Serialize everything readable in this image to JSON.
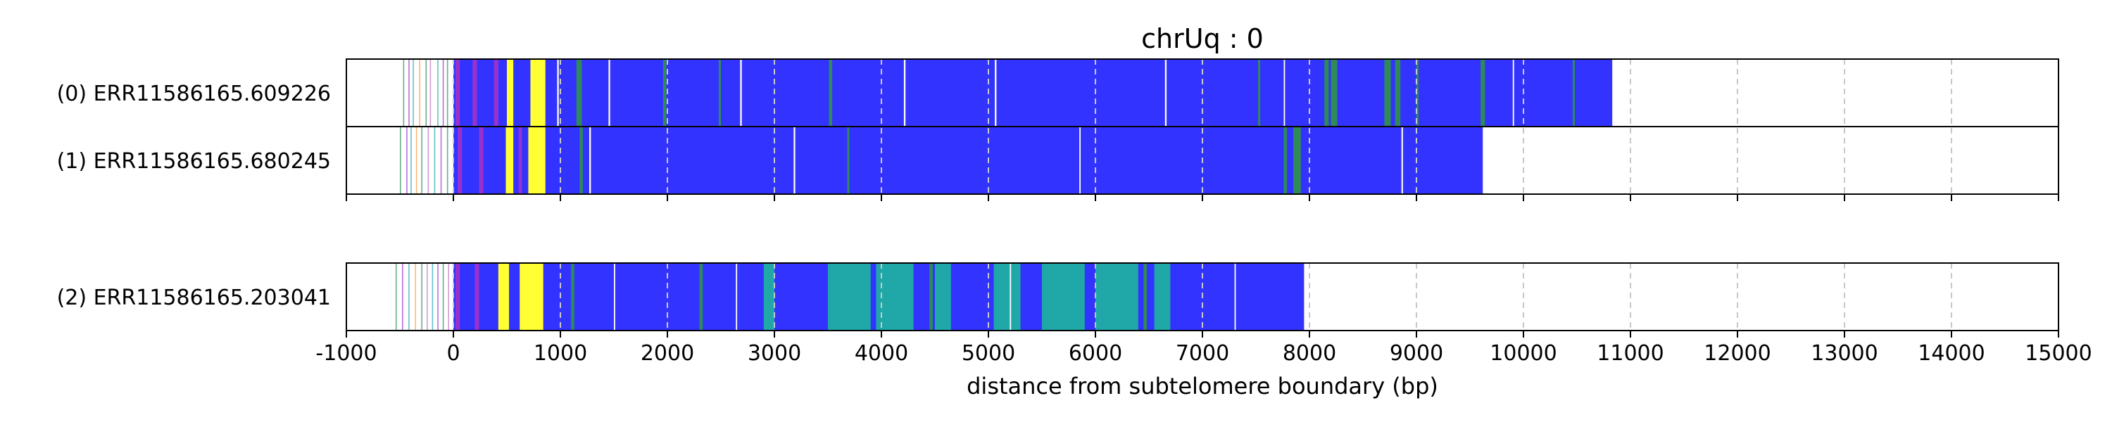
{
  "chart_data": {
    "type": "bar",
    "title": "chrUq : 0",
    "xlabel": "distance from subtelomere boundary (bp)",
    "xlim": [
      -1000,
      15000
    ],
    "xticks": [
      -1000,
      0,
      1000,
      2000,
      3000,
      4000,
      5000,
      6000,
      7000,
      8000,
      9000,
      10000,
      11000,
      12000,
      13000,
      14000,
      15000
    ],
    "grid": "vertical dashed at each x tick",
    "colors": {
      "main": "#3333ff",
      "yellow": "#ffff33",
      "green": "#2e8b57",
      "teal": "#20a8a8",
      "purple": "#9932cc",
      "white": "#ffffff",
      "grid": "#c8c8c8"
    },
    "reads": [
      {
        "label": "(0) ERR11586165.609226",
        "panel": 1,
        "start": -500,
        "solid_start": 0,
        "end": 10830,
        "yellow": [
          [
            500,
            560
          ],
          [
            720,
            860
          ]
        ],
        "purple": [
          [
            20,
            60
          ],
          [
            180,
            220
          ],
          [
            380,
            420
          ]
        ],
        "green": [
          [
            1150,
            1200
          ],
          [
            1960,
            1990
          ],
          [
            2480,
            2500
          ],
          [
            3510,
            3540
          ],
          [
            7520,
            7540
          ],
          [
            8140,
            8180
          ],
          [
            8200,
            8260
          ],
          [
            8700,
            8760
          ],
          [
            8800,
            8850
          ],
          [
            9000,
            9020
          ],
          [
            9600,
            9640
          ],
          [
            10460,
            10480
          ]
        ],
        "white": [
          [
            970,
            985
          ],
          [
            1450,
            1465
          ],
          [
            2680,
            2695
          ],
          [
            4210,
            4225
          ],
          [
            5060,
            5075
          ],
          [
            6650,
            6665
          ],
          [
            7760,
            7772
          ],
          [
            9900,
            9912
          ]
        ],
        "thin": [
          -470,
          -420,
          -380,
          -320,
          -260,
          -220,
          -150,
          -100,
          -60
        ]
      },
      {
        "label": "(1) ERR11586165.680245",
        "panel": 1,
        "start": -520,
        "solid_start": 0,
        "end": 9620,
        "yellow": [
          [
            490,
            560
          ],
          [
            700,
            860
          ]
        ],
        "purple": [
          [
            40,
            80
          ],
          [
            240,
            280
          ],
          [
            610,
            640
          ]
        ],
        "green": [
          [
            1180,
            1210
          ],
          [
            3680,
            3700
          ],
          [
            7760,
            7790
          ],
          [
            7850,
            7920
          ]
        ],
        "white": [
          [
            1270,
            1285
          ],
          [
            3180,
            3195
          ],
          [
            5850,
            5862
          ],
          [
            8860,
            8874
          ]
        ],
        "thin": [
          -500,
          -440,
          -400,
          -350,
          -300,
          -240,
          -180,
          -120,
          -60
        ]
      },
      {
        "label": "(2) ERR11586165.203041",
        "panel": 2,
        "start": -560,
        "solid_start": 0,
        "end": 7950,
        "yellow": [
          [
            420,
            520
          ],
          [
            620,
            840
          ]
        ],
        "purple": [
          [
            20,
            60
          ],
          [
            200,
            240
          ]
        ],
        "green": [
          [
            1100,
            1130
          ],
          [
            2300,
            2330
          ],
          [
            4450,
            4480
          ],
          [
            6450,
            6480
          ]
        ],
        "white": [
          [
            1500,
            1512
          ],
          [
            2640,
            2652
          ],
          [
            5200,
            5212
          ],
          [
            7300,
            7312
          ]
        ],
        "teal": [
          [
            2900,
            3000
          ],
          [
            3500,
            3900
          ],
          [
            3950,
            4300
          ],
          [
            4500,
            4650
          ],
          [
            5050,
            5300
          ],
          [
            5500,
            5900
          ],
          [
            6000,
            6400
          ],
          [
            6550,
            6700
          ]
        ],
        "thin": [
          -540,
          -480,
          -420,
          -360,
          -300,
          -250,
          -200,
          -150,
          -100,
          -50
        ]
      }
    ]
  }
}
